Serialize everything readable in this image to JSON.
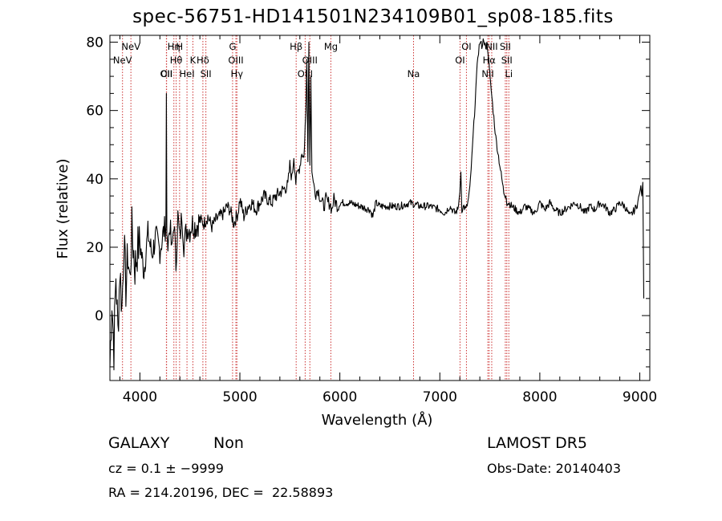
{
  "title": "spec-56751-HD141501N234109B01_sp08-185.fits",
  "info": {
    "class": "GALAXY",
    "subclass": "Non",
    "survey": "LAMOST DR5",
    "cz": "cz = 0.1 ± −9999",
    "obs_date": "Obs-Date: 20140403",
    "coords": "RA = 214.20196, DEC =  22.58893"
  },
  "colors": {
    "line": "#000000",
    "marker": "#cc3333"
  },
  "chart_data": {
    "type": "line",
    "title": "spec-56751-HD141501N234109B01_sp08-185.fits",
    "xlabel": "Wavelength (Å)",
    "ylabel": "Flux (relative)",
    "xlim": [
      3700,
      9100
    ],
    "ylim": [
      -19,
      82
    ],
    "xticks": [
      4000,
      5000,
      6000,
      7000,
      8000,
      9000
    ],
    "yticks": [
      0,
      20,
      40,
      60,
      80
    ],
    "grid": false,
    "series": [
      {
        "x": [
          3700,
          3720,
          3740,
          3760,
          3780,
          3800,
          3820,
          3840,
          3860,
          3880,
          3900,
          3920,
          3950,
          3980,
          4000,
          4040,
          4080,
          4120,
          4160,
          4200,
          4240,
          4260,
          4265,
          4270,
          4280,
          4300,
          4320,
          4340,
          4360,
          4380,
          4400,
          4420,
          4440,
          4460,
          4480,
          4500,
          4520,
          4560,
          4600,
          4640,
          4680,
          4720,
          4760,
          4800,
          4840,
          4870,
          4900,
          4940,
          4980,
          5000,
          5040,
          5080,
          5120,
          5160,
          5200,
          5240,
          5280,
          5320,
          5360,
          5400,
          5440,
          5480,
          5500,
          5520,
          5540,
          5560,
          5580,
          5600,
          5620,
          5640,
          5660,
          5670,
          5680,
          5690,
          5700,
          5710,
          5720,
          5730,
          5740,
          5760,
          5780,
          5800,
          5820,
          5840,
          5860,
          5880,
          5900,
          5920,
          5940,
          5960,
          5980,
          6000,
          6100,
          6200,
          6300,
          6330,
          6360,
          6400,
          6500,
          6600,
          6700,
          6800,
          6900,
          7000,
          7050,
          7100,
          7150,
          7180,
          7200,
          7210,
          7220,
          7240,
          7260,
          7280,
          7300,
          7320,
          7340,
          7360,
          7380,
          7400,
          7420,
          7440,
          7460,
          7470,
          7480,
          7490,
          7500,
          7520,
          7540,
          7560,
          7580,
          7600,
          7620,
          7640,
          7660,
          7670,
          7690,
          7720,
          7760,
          7800,
          7850,
          7900,
          7950,
          8000,
          8050,
          8100,
          8150,
          8200,
          8250,
          8300,
          8350,
          8400,
          8450,
          8500,
          8550,
          8600,
          8650,
          8700,
          8750,
          8800,
          8850,
          8900,
          8950,
          8980,
          9000,
          9010,
          9020,
          9030,
          9040
        ],
        "y": [
          -15,
          5,
          -10,
          12,
          -5,
          14,
          2,
          22,
          8,
          18,
          10,
          25,
          14,
          20,
          21,
          13,
          24,
          18,
          23,
          19,
          25,
          26,
          65,
          24,
          20,
          27,
          18,
          28,
          15,
          29,
          22,
          30,
          21,
          24,
          26,
          25,
          27,
          26,
          28,
          27,
          29,
          26,
          28,
          29,
          30,
          32,
          31,
          27,
          30,
          34,
          29,
          32,
          33,
          31,
          33,
          35,
          34,
          33,
          35,
          36,
          37,
          38,
          44,
          40,
          47,
          39,
          42,
          44,
          48,
          46,
          60,
          75,
          45,
          80,
          44,
          70,
          42,
          40,
          38,
          36,
          37,
          35,
          33,
          32,
          34,
          33,
          33,
          31,
          34,
          33,
          32,
          33,
          33,
          32,
          31,
          29,
          33,
          32,
          32,
          32,
          33,
          32,
          32,
          31,
          30,
          32,
          30,
          31,
          36,
          42,
          31,
          32,
          31,
          33,
          37,
          46,
          56,
          66,
          76,
          80,
          79,
          81,
          78,
          80,
          77,
          75,
          70,
          64,
          58,
          52,
          48,
          44,
          40,
          36,
          35,
          33,
          33,
          32,
          31,
          30,
          32,
          31,
          30,
          33,
          31,
          33,
          31,
          30,
          31,
          32,
          33,
          32,
          30,
          32,
          31,
          33,
          32,
          30,
          31,
          33,
          32,
          29,
          31,
          33,
          36,
          38,
          35,
          39,
          5
        ]
      }
    ],
    "lines": [
      {
        "label": "NeV",
        "wave": 3826,
        "row": 1
      },
      {
        "label": "NeV",
        "wave": 3910,
        "row": 0
      },
      {
        "label": "OII",
        "wave": 4265,
        "row": 2
      },
      {
        "label": "CII",
        "wave": 4267,
        "row": 2
      },
      {
        "label": "Hη",
        "wave": 4340,
        "row": 0
      },
      {
        "label": "Hθ",
        "wave": 4363,
        "row": 1
      },
      {
        "label": "H",
        "wave": 4397,
        "row": 0
      },
      {
        "label": "HeI",
        "wave": 4471,
        "row": 2
      },
      {
        "label": "K",
        "wave": 4530,
        "row": 1
      },
      {
        "label": "Hδ",
        "wave": 4630,
        "row": 1
      },
      {
        "label": "SII",
        "wave": 4660,
        "row": 2
      },
      {
        "label": "G",
        "wave": 4927,
        "row": 0
      },
      {
        "label": "OIII",
        "wave": 4960,
        "row": 1
      },
      {
        "label": "Hγ",
        "wave": 4970,
        "row": 2
      },
      {
        "label": "Hβ",
        "wave": 5563,
        "row": 0
      },
      {
        "label": "OIII",
        "wave": 5653,
        "row": 2
      },
      {
        "label": "OIII",
        "wave": 5700,
        "row": 1
      },
      {
        "label": "Mg",
        "wave": 5910,
        "row": 0
      },
      {
        "label": "Na",
        "wave": 6737,
        "row": 2
      },
      {
        "label": "OI",
        "wave": 7202,
        "row": 1
      },
      {
        "label": "OI",
        "wave": 7266,
        "row": 0
      },
      {
        "label": "NII",
        "wave": 7480,
        "row": 2
      },
      {
        "label": "Hα",
        "wave": 7493,
        "row": 1
      },
      {
        "label": "NII",
        "wave": 7519,
        "row": 0
      },
      {
        "label": "SII",
        "wave": 7655,
        "row": 0
      },
      {
        "label": "SII",
        "wave": 7670,
        "row": 1
      },
      {
        "label": "Li",
        "wave": 7690,
        "row": 2
      }
    ]
  }
}
